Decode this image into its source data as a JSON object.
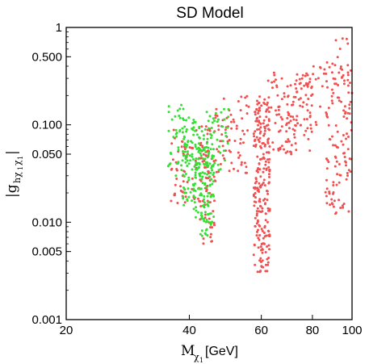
{
  "chart_data": {
    "type": "scatter",
    "title": "SD Model",
    "xlabel": "M_{χ1}[GeV]",
    "ylabel": "|g_{hχ1χ1}|",
    "xscale": "log",
    "yscale": "log",
    "xlim": [
      20,
      100
    ],
    "ylim": [
      0.001,
      1
    ],
    "x_ticks": [
      {
        "value": 20,
        "label": "20"
      },
      {
        "value": 40,
        "label": "40"
      },
      {
        "value": 60,
        "label": "60"
      },
      {
        "value": 80,
        "label": "80"
      },
      {
        "value": 100,
        "label": "100"
      }
    ],
    "y_ticks": [
      {
        "value": 0.001,
        "label": "0.001"
      },
      {
        "value": 0.005,
        "label": "0.005"
      },
      {
        "value": 0.01,
        "label": "0.010"
      },
      {
        "value": 0.05,
        "label": "0.050"
      },
      {
        "value": 0.1,
        "label": "0.100"
      },
      {
        "value": 0.5,
        "label": "0.500"
      },
      {
        "value": 1,
        "label": "1"
      }
    ],
    "grid": false,
    "legend": "none",
    "series": [
      {
        "color": "#33e033",
        "regions": [
          {
            "x": [
              35.5,
              39.5
            ],
            "y": [
              0.03,
              0.16
            ],
            "n": 45
          },
          {
            "x": [
              38.5,
              42.5
            ],
            "y": [
              0.015,
              0.12
            ],
            "n": 70
          },
          {
            "x": [
              41,
              46
            ],
            "y": [
              0.007,
              0.06
            ],
            "n": 110
          },
          {
            "x": [
              44,
              50
            ],
            "y": [
              0.03,
              0.15
            ],
            "n": 45
          },
          {
            "x": [
              40,
              45
            ],
            "y": [
              0.04,
              0.09
            ],
            "n": 25
          }
        ]
      },
      {
        "color": "#f05050",
        "regions": [
          {
            "x": [
              36,
              45
            ],
            "y": [
              0.015,
              0.1
            ],
            "n": 90
          },
          {
            "x": [
              42.5,
              46.5
            ],
            "y": [
              0.006,
              0.07
            ],
            "n": 45
          },
          {
            "x": [
              46,
              56
            ],
            "y": [
              0.03,
              0.2
            ],
            "n": 70
          },
          {
            "x": [
              57.5,
              63
            ],
            "y": [
              0.003,
              0.2
            ],
            "n": 230
          },
          {
            "x": [
              62,
              80
            ],
            "y": [
              0.05,
              0.3
            ],
            "n": 110
          },
          {
            "x": [
              64,
              88
            ],
            "y": [
              0.1,
              0.4
            ],
            "n": 40
          },
          {
            "x": [
              86,
              100
            ],
            "y": [
              0.012,
              0.45
            ],
            "n": 120
          },
          {
            "x": [
              90,
              98
            ],
            "y": [
              0.3,
              0.8
            ],
            "n": 12
          }
        ]
      }
    ]
  }
}
